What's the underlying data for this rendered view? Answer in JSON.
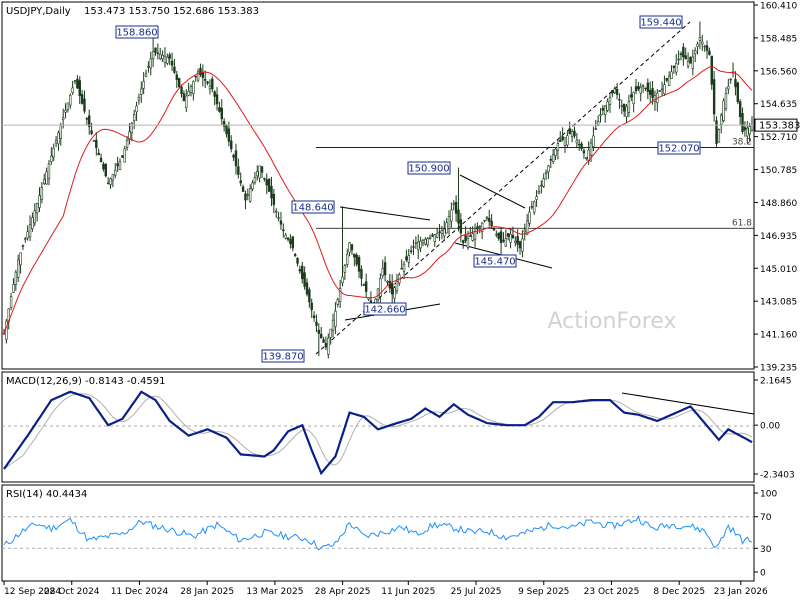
{
  "chart_data": [
    {
      "type": "candlestick",
      "title": "USDJPY,Daily",
      "ohlc_readout": "153.473 153.750 152.686 153.383",
      "last_price": "153.383",
      "ylim": [
        139.235,
        160.41
      ],
      "y_ticks": [
        "160.410",
        "158.485",
        "156.560",
        "154.635",
        "152.710",
        "150.785",
        "148.860",
        "146.935",
        "145.010",
        "143.085",
        "141.160",
        "139.235"
      ],
      "x_ticks": [
        "12 Sep 2024",
        "28 Oct 2024",
        "11 Dec 2024",
        "28 Jan 2025",
        "13 Mar 2025",
        "28 Apr 2025",
        "11 Jun 2025",
        "25 Jul 2025",
        "9 Sep 2025",
        "23 Oct 2025",
        "8 Dec 2025",
        "23 Jan 2026"
      ],
      "close_path": [
        [
          0,
          141.2
        ],
        [
          6,
          145.5
        ],
        [
          14,
          148.8
        ],
        [
          22,
          152.5
        ],
        [
          30,
          156
        ],
        [
          36,
          153.3
        ],
        [
          44,
          150
        ],
        [
          50,
          151.5
        ],
        [
          58,
          155.5
        ],
        [
          63,
          157.7
        ],
        [
          70,
          157.3
        ],
        [
          76,
          154.8
        ],
        [
          82,
          156.5
        ],
        [
          88,
          155.5
        ],
        [
          96,
          152
        ],
        [
          102,
          149
        ],
        [
          108,
          151
        ],
        [
          112,
          149.5
        ],
        [
          118,
          147.2
        ],
        [
          122,
          146.2
        ],
        [
          128,
          143.5
        ],
        [
          133,
          141.2
        ],
        [
          136,
          140.4
        ],
        [
          140,
          142.5
        ],
        [
          146,
          146.5
        ],
        [
          152,
          144
        ],
        [
          156,
          142.6
        ],
        [
          160,
          145
        ],
        [
          164,
          143.5
        ],
        [
          168,
          145
        ],
        [
          174,
          146.5
        ],
        [
          180,
          146.8
        ],
        [
          186,
          147.3
        ],
        [
          190,
          148.8
        ],
        [
          194,
          146.5
        ],
        [
          200,
          147.3
        ],
        [
          204,
          148
        ],
        [
          210,
          146.5
        ],
        [
          214,
          147
        ],
        [
          218,
          146.2
        ],
        [
          222,
          148.3
        ],
        [
          226,
          149.5
        ],
        [
          230,
          151
        ],
        [
          234,
          152.3
        ],
        [
          240,
          153
        ],
        [
          246,
          151.5
        ],
        [
          252,
          154
        ],
        [
          258,
          155.5
        ],
        [
          262,
          154.2
        ],
        [
          266,
          155.3
        ],
        [
          270,
          155.7
        ],
        [
          274,
          155
        ],
        [
          278,
          155.5
        ],
        [
          282,
          156.5
        ],
        [
          286,
          157.5
        ],
        [
          290,
          157
        ],
        [
          294,
          158.5
        ],
        [
          298,
          157.5
        ],
        [
          301,
          152.3
        ],
        [
          304,
          154.8
        ],
        [
          308,
          156.5
        ],
        [
          312,
          153
        ],
        [
          316,
          153.4
        ]
      ],
      "turning_points": [
        [
          0,
          141.2
        ],
        [
          63,
          158.86
        ],
        [
          133,
          139.87
        ],
        [
          143,
          148.64
        ],
        [
          155,
          142.66
        ],
        [
          192,
          150.9
        ],
        [
          210,
          145.47
        ],
        [
          294,
          159.44
        ],
        [
          301,
          152.07
        ]
      ],
      "annotations": [
        "158.860",
        "148.640",
        "142.660",
        "139.870",
        "150.900",
        "145.470",
        "159.440",
        "152.070"
      ],
      "fib_levels": [
        {
          "label": "38.2",
          "price": 152.07
        },
        {
          "label": "61.8",
          "price": 147.35
        }
      ],
      "watermark": "ActionForex"
    },
    {
      "type": "line",
      "title": "MACD(12,26,9) -0.8143 -0.4591",
      "ylim": [
        -2.3403,
        2.1645
      ],
      "y_ticks": [
        "2.1645",
        "0.00",
        "-2.3403"
      ],
      "macd_path": [
        [
          0,
          -2.1
        ],
        [
          10,
          -0.5
        ],
        [
          20,
          1.2
        ],
        [
          28,
          1.6
        ],
        [
          36,
          1.3
        ],
        [
          44,
          0
        ],
        [
          50,
          0.3
        ],
        [
          58,
          1.6
        ],
        [
          64,
          1.2
        ],
        [
          70,
          0.2
        ],
        [
          78,
          -0.5
        ],
        [
          86,
          -0.2
        ],
        [
          94,
          -0.6
        ],
        [
          100,
          -1.4
        ],
        [
          110,
          -1.5
        ],
        [
          114,
          -1.2
        ],
        [
          120,
          -0.3
        ],
        [
          126,
          0
        ],
        [
          130,
          -1.2
        ],
        [
          134,
          -2.3
        ],
        [
          140,
          -1.5
        ],
        [
          146,
          0.6
        ],
        [
          152,
          0.4
        ],
        [
          158,
          -0.2
        ],
        [
          166,
          0.1
        ],
        [
          172,
          0.3
        ],
        [
          178,
          0.8
        ],
        [
          184,
          0.4
        ],
        [
          190,
          1
        ],
        [
          196,
          0.5
        ],
        [
          204,
          0.1
        ],
        [
          212,
          0
        ],
        [
          220,
          0
        ],
        [
          226,
          0.4
        ],
        [
          232,
          1.1
        ],
        [
          240,
          1.1
        ],
        [
          248,
          1.2
        ],
        [
          256,
          1.2
        ],
        [
          262,
          0.6
        ],
        [
          268,
          0.5
        ],
        [
          276,
          0.2
        ],
        [
          284,
          0.6
        ],
        [
          290,
          0.9
        ],
        [
          296,
          0.1
        ],
        [
          302,
          -0.7
        ],
        [
          306,
          -0.2
        ],
        [
          316,
          -0.81
        ]
      ]
    },
    {
      "type": "line",
      "title": "RSI(14) 40.4434",
      "ylim": [
        0,
        100
      ],
      "y_ticks": [
        "100",
        "70",
        "30",
        "0"
      ],
      "rsi_path": [
        [
          0,
          33
        ],
        [
          8,
          52
        ],
        [
          14,
          61
        ],
        [
          20,
          55
        ],
        [
          28,
          66
        ],
        [
          36,
          40
        ],
        [
          44,
          45
        ],
        [
          50,
          48
        ],
        [
          58,
          64
        ],
        [
          64,
          58
        ],
        [
          72,
          52
        ],
        [
          80,
          45
        ],
        [
          90,
          60
        ],
        [
          100,
          40
        ],
        [
          110,
          50
        ],
        [
          120,
          45
        ],
        [
          128,
          42
        ],
        [
          134,
          30
        ],
        [
          140,
          35
        ],
        [
          146,
          62
        ],
        [
          152,
          45
        ],
        [
          160,
          50
        ],
        [
          168,
          57
        ],
        [
          174,
          48
        ],
        [
          182,
          60
        ],
        [
          190,
          56
        ],
        [
          198,
          50
        ],
        [
          204,
          52
        ],
        [
          212,
          44
        ],
        [
          220,
          49
        ],
        [
          226,
          55
        ],
        [
          232,
          60
        ],
        [
          240,
          56
        ],
        [
          248,
          64
        ],
        [
          256,
          58
        ],
        [
          262,
          62
        ],
        [
          268,
          68
        ],
        [
          274,
          55
        ],
        [
          282,
          60
        ],
        [
          290,
          58
        ],
        [
          296,
          52
        ],
        [
          301,
          30
        ],
        [
          306,
          58
        ],
        [
          312,
          40
        ],
        [
          316,
          40
        ]
      ]
    }
  ]
}
